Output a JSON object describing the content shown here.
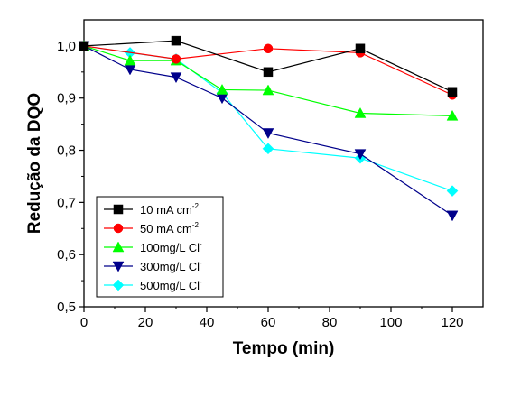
{
  "chart_data": {
    "type": "line",
    "title": "",
    "xlabel": "Tempo (min)",
    "ylabel": "Redução da DQO",
    "xlim": [
      0,
      130
    ],
    "ylim": [
      0.5,
      1.05
    ],
    "xticks": [
      0,
      20,
      40,
      60,
      80,
      100,
      120
    ],
    "yticks": [
      0.5,
      0.6,
      0.7,
      0.8,
      0.9,
      1.0
    ],
    "xtick_labels": [
      "0",
      "20",
      "40",
      "60",
      "80",
      "100",
      "120"
    ],
    "ytick_labels": [
      "0,5",
      "0,6",
      "0,7",
      "0,8",
      "0,9",
      "1,0"
    ],
    "grid": false,
    "legend_position": "bottom-left",
    "series": [
      {
        "name": "10 mA cm",
        "name_sup": "-2",
        "color": "#000000",
        "marker": "square",
        "x": [
          0,
          30,
          60,
          90,
          120
        ],
        "y": [
          1.0,
          1.01,
          0.95,
          0.995,
          0.912
        ]
      },
      {
        "name": "50 mA cm",
        "name_sup": "-2",
        "color": "#ff0000",
        "marker": "circle",
        "x": [
          0,
          30,
          60,
          90,
          120
        ],
        "y": [
          1.0,
          0.975,
          0.995,
          0.987,
          0.906
        ]
      },
      {
        "name": "100mg/L Cl",
        "name_sup": "-",
        "color": "#00ff00",
        "marker": "triangle-up",
        "x": [
          0,
          15,
          30,
          45,
          60,
          90,
          120
        ],
        "y": [
          1.0,
          0.972,
          0.972,
          0.916,
          0.915,
          0.871,
          0.866
        ]
      },
      {
        "name": "300mg/L Cl",
        "name_sup": "-",
        "color": "#00008b",
        "marker": "triangle-down",
        "x": [
          0,
          15,
          30,
          45,
          60,
          90,
          120
        ],
        "y": [
          1.0,
          0.955,
          0.94,
          0.9,
          0.833,
          0.793,
          0.675
        ]
      },
      {
        "name": "500mg/L Cl",
        "name_sup": "-",
        "color": "#00ffff",
        "marker": "diamond",
        "x": [
          0,
          15,
          30,
          45,
          60,
          90,
          120
        ],
        "y": [
          1.0,
          0.987,
          0.975,
          0.91,
          0.803,
          0.785,
          0.722
        ]
      }
    ]
  }
}
